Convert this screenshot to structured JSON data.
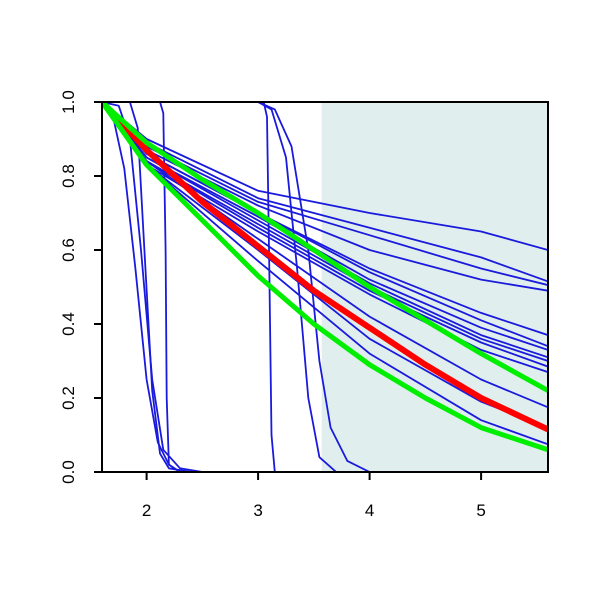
{
  "chart_data": {
    "type": "line",
    "title": "",
    "xlabel": "",
    "ylabel": "",
    "xlim": [
      1.6,
      5.6
    ],
    "ylim": [
      0.0,
      1.0
    ],
    "x_ticks": [
      2,
      3,
      4,
      5
    ],
    "y_ticks": [
      0.0,
      0.2,
      0.4,
      0.6,
      0.8,
      1.0
    ],
    "x_tick_labels": [
      "2",
      "3",
      "4",
      "5"
    ],
    "y_tick_labels": [
      "0.0",
      "0.2",
      "0.4",
      "0.6",
      "0.8",
      "1.0"
    ],
    "shaded_region": {
      "x_start": 3.57,
      "x_end": 5.6,
      "color": "#e0eeee"
    },
    "colors": {
      "blue": "#1a1adc",
      "red": "#ff0000",
      "green": "#00ee00",
      "axis": "#000000"
    },
    "grid": false,
    "legend": "none",
    "series": [
      {
        "color": "blue",
        "width": 1.8,
        "points": [
          [
            1.6,
            1.0
          ],
          [
            2.0,
            0.88
          ],
          [
            3.0,
            0.73
          ],
          [
            4.0,
            0.64
          ],
          [
            5.0,
            0.55
          ],
          [
            5.6,
            0.505
          ]
        ]
      },
      {
        "color": "blue",
        "width": 1.8,
        "points": [
          [
            1.6,
            1.0
          ],
          [
            2.0,
            0.89
          ],
          [
            3.0,
            0.74
          ],
          [
            4.0,
            0.66
          ],
          [
            5.0,
            0.58
          ],
          [
            5.6,
            0.515
          ]
        ]
      },
      {
        "color": "blue",
        "width": 1.8,
        "points": [
          [
            1.6,
            1.0
          ],
          [
            2.0,
            0.9
          ],
          [
            3.0,
            0.76
          ],
          [
            4.0,
            0.7
          ],
          [
            5.0,
            0.65
          ],
          [
            5.6,
            0.6
          ]
        ]
      },
      {
        "color": "blue",
        "width": 1.8,
        "points": [
          [
            1.6,
            1.0
          ],
          [
            2.0,
            0.87
          ],
          [
            3.0,
            0.72
          ],
          [
            4.0,
            0.6
          ],
          [
            5.0,
            0.52
          ],
          [
            5.6,
            0.49
          ]
        ]
      },
      {
        "color": "blue",
        "width": 1.8,
        "points": [
          [
            1.6,
            1.0
          ],
          [
            2.0,
            0.86
          ],
          [
            3.0,
            0.7
          ],
          [
            4.0,
            0.55
          ],
          [
            5.0,
            0.43
          ],
          [
            5.6,
            0.37
          ]
        ]
      },
      {
        "color": "blue",
        "width": 1.8,
        "points": [
          [
            1.6,
            1.0
          ],
          [
            2.0,
            0.86
          ],
          [
            3.0,
            0.7
          ],
          [
            4.0,
            0.54
          ],
          [
            5.0,
            0.41
          ],
          [
            5.6,
            0.34
          ]
        ]
      },
      {
        "color": "blue",
        "width": 1.8,
        "points": [
          [
            1.6,
            1.0
          ],
          [
            2.0,
            0.85
          ],
          [
            3.0,
            0.69
          ],
          [
            4.0,
            0.52
          ],
          [
            5.0,
            0.39
          ],
          [
            5.6,
            0.33
          ]
        ]
      },
      {
        "color": "blue",
        "width": 1.8,
        "points": [
          [
            1.6,
            1.0
          ],
          [
            2.0,
            0.85
          ],
          [
            3.0,
            0.68
          ],
          [
            4.0,
            0.51
          ],
          [
            5.0,
            0.37
          ],
          [
            5.6,
            0.31
          ]
        ]
      },
      {
        "color": "blue",
        "width": 1.8,
        "points": [
          [
            1.6,
            1.0
          ],
          [
            2.0,
            0.84
          ],
          [
            3.0,
            0.67
          ],
          [
            4.0,
            0.5
          ],
          [
            5.0,
            0.36
          ],
          [
            5.6,
            0.3
          ]
        ]
      },
      {
        "color": "blue",
        "width": 1.8,
        "points": [
          [
            1.6,
            1.0
          ],
          [
            2.0,
            0.84
          ],
          [
            3.0,
            0.66
          ],
          [
            4.0,
            0.49
          ],
          [
            5.0,
            0.35
          ],
          [
            5.6,
            0.285
          ]
        ]
      },
      {
        "color": "blue",
        "width": 1.8,
        "points": [
          [
            1.6,
            1.0
          ],
          [
            2.0,
            0.83
          ],
          [
            3.0,
            0.65
          ],
          [
            4.0,
            0.48
          ],
          [
            5.0,
            0.33
          ],
          [
            5.6,
            0.27
          ]
        ]
      },
      {
        "color": "blue",
        "width": 1.8,
        "points": [
          [
            1.6,
            1.0
          ],
          [
            2.0,
            0.84
          ],
          [
            3.0,
            0.63
          ],
          [
            4.0,
            0.42
          ],
          [
            5.0,
            0.25
          ],
          [
            5.6,
            0.175
          ]
        ]
      },
      {
        "color": "blue",
        "width": 1.8,
        "points": [
          [
            1.6,
            1.0
          ],
          [
            2.0,
            0.83
          ],
          [
            3.0,
            0.6
          ],
          [
            4.0,
            0.36
          ],
          [
            5.0,
            0.19
          ],
          [
            5.6,
            0.12
          ]
        ]
      },
      {
        "color": "blue",
        "width": 1.8,
        "points": [
          [
            1.6,
            1.0
          ],
          [
            2.0,
            0.83
          ],
          [
            3.0,
            0.57
          ],
          [
            4.0,
            0.32
          ],
          [
            5.0,
            0.14
          ],
          [
            5.6,
            0.075
          ]
        ]
      },
      {
        "color": "blue",
        "width": 1.8,
        "points": [
          [
            1.6,
            1.0
          ],
          [
            1.7,
            0.96
          ],
          [
            1.8,
            0.82
          ],
          [
            1.9,
            0.55
          ],
          [
            2.0,
            0.25
          ],
          [
            2.1,
            0.08
          ],
          [
            2.2,
            0.02
          ],
          [
            2.3,
            0.0
          ],
          [
            5.6,
            0.0
          ]
        ]
      },
      {
        "color": "blue",
        "width": 1.8,
        "points": [
          [
            1.6,
            1.0
          ],
          [
            1.75,
            0.99
          ],
          [
            1.85,
            0.9
          ],
          [
            1.95,
            0.6
          ],
          [
            2.05,
            0.25
          ],
          [
            2.15,
            0.06
          ],
          [
            2.3,
            0.01
          ],
          [
            2.5,
            0.0
          ],
          [
            5.6,
            0.0
          ]
        ]
      },
      {
        "color": "blue",
        "width": 1.8,
        "points": [
          [
            1.6,
            1.0
          ],
          [
            1.85,
            1.0
          ],
          [
            1.92,
            0.93
          ],
          [
            1.98,
            0.6
          ],
          [
            2.05,
            0.22
          ],
          [
            2.12,
            0.05
          ],
          [
            2.2,
            0.01
          ],
          [
            2.4,
            0.0
          ],
          [
            5.6,
            0.0
          ]
        ]
      },
      {
        "color": "blue",
        "width": 1.8,
        "points": [
          [
            1.6,
            1.0
          ],
          [
            2.12,
            1.0
          ],
          [
            2.15,
            0.97
          ],
          [
            2.17,
            0.6
          ],
          [
            2.18,
            0.2
          ],
          [
            2.2,
            0.02
          ],
          [
            2.3,
            0.0
          ],
          [
            5.6,
            0.0
          ]
        ]
      },
      {
        "color": "blue",
        "width": 1.8,
        "points": [
          [
            1.6,
            1.0
          ],
          [
            3.05,
            1.0
          ],
          [
            3.08,
            0.96
          ],
          [
            3.1,
            0.55
          ],
          [
            3.12,
            0.1
          ],
          [
            3.15,
            0.0
          ],
          [
            5.6,
            0.0
          ]
        ]
      },
      {
        "color": "blue",
        "width": 1.8,
        "points": [
          [
            1.6,
            1.0
          ],
          [
            3.0,
            1.0
          ],
          [
            3.12,
            0.98
          ],
          [
            3.25,
            0.85
          ],
          [
            3.35,
            0.55
          ],
          [
            3.45,
            0.2
          ],
          [
            3.55,
            0.04
          ],
          [
            3.7,
            0.0
          ],
          [
            5.6,
            0.0
          ]
        ]
      },
      {
        "color": "blue",
        "width": 1.8,
        "points": [
          [
            1.6,
            1.0
          ],
          [
            3.0,
            1.0
          ],
          [
            3.15,
            0.98
          ],
          [
            3.3,
            0.88
          ],
          [
            3.45,
            0.6
          ],
          [
            3.55,
            0.3
          ],
          [
            3.65,
            0.12
          ],
          [
            3.8,
            0.03
          ],
          [
            4.0,
            0.0
          ],
          [
            5.6,
            0.0
          ]
        ]
      },
      {
        "color": "red",
        "width": 6,
        "points": [
          [
            1.6,
            1.0
          ],
          [
            2.0,
            0.87
          ],
          [
            2.5,
            0.73
          ],
          [
            3.0,
            0.61
          ],
          [
            3.5,
            0.49
          ],
          [
            4.0,
            0.39
          ],
          [
            4.5,
            0.29
          ],
          [
            5.0,
            0.2
          ],
          [
            5.6,
            0.115
          ]
        ]
      },
      {
        "color": "green",
        "width": 5,
        "points": [
          [
            1.6,
            1.0
          ],
          [
            2.0,
            0.89
          ],
          [
            2.5,
            0.79
          ],
          [
            3.0,
            0.7
          ],
          [
            3.5,
            0.6
          ],
          [
            4.0,
            0.5
          ],
          [
            4.5,
            0.41
          ],
          [
            5.0,
            0.32
          ],
          [
            5.6,
            0.22
          ]
        ]
      },
      {
        "color": "green",
        "width": 5,
        "points": [
          [
            1.6,
            1.0
          ],
          [
            2.0,
            0.83
          ],
          [
            2.5,
            0.68
          ],
          [
            3.0,
            0.53
          ],
          [
            3.5,
            0.4
          ],
          [
            4.0,
            0.29
          ],
          [
            4.5,
            0.2
          ],
          [
            5.0,
            0.12
          ],
          [
            5.6,
            0.06
          ]
        ]
      }
    ]
  }
}
